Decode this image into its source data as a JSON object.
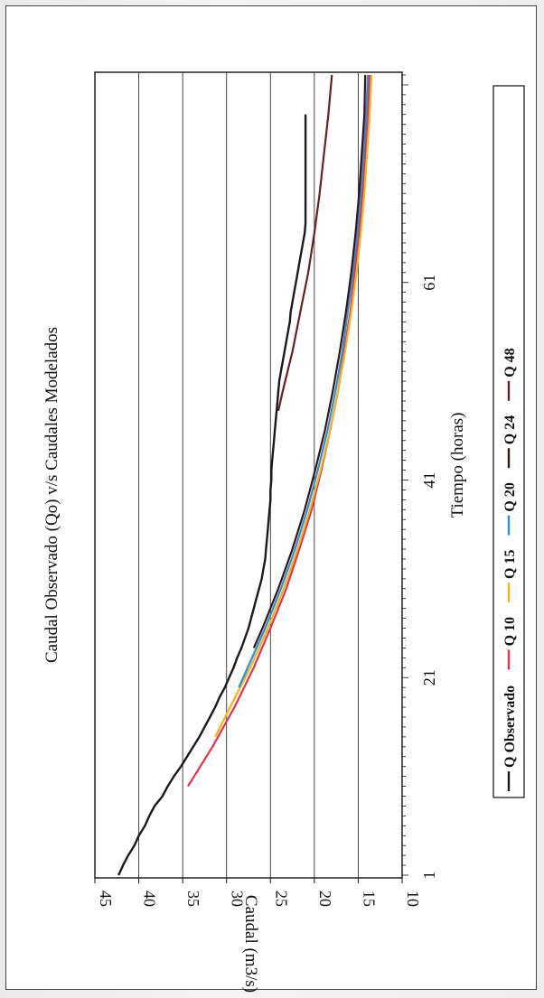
{
  "chart_data": {
    "type": "line",
    "title": "Caudal Observado (Qo) v/s Caudales Modelados",
    "xlabel": "Tiempo (horas)",
    "ylabel": "Caudal (m3/s)",
    "x_ticks": [
      "1",
      "21",
      "41",
      "61"
    ],
    "y_ticks": [
      "10",
      "15",
      "20",
      "25",
      "30",
      "35",
      "40",
      "45"
    ],
    "xlim": [
      1,
      82
    ],
    "ylim": [
      10,
      45
    ],
    "grid": "horizontal",
    "legend_position": "bottom",
    "series": [
      {
        "name": "Q Observado",
        "color": "#1a1a1a",
        "x": [
          1,
          2,
          3,
          4,
          5,
          6,
          7,
          8,
          9,
          10,
          11,
          12,
          13,
          14,
          15,
          16,
          17,
          18,
          19,
          20,
          21,
          22,
          23,
          24,
          25,
          26,
          27,
          28,
          29,
          30,
          31,
          32,
          33,
          34,
          35,
          36,
          37,
          38,
          39,
          40,
          41,
          42,
          43,
          44,
          45,
          46,
          47,
          48,
          49,
          50,
          51,
          52,
          53,
          54,
          55,
          56,
          57,
          58,
          59,
          60,
          61,
          62,
          63,
          64,
          65,
          66,
          67,
          68,
          69,
          70,
          71,
          72,
          73,
          74,
          75,
          76,
          77,
          78
        ],
        "y": [
          42.3,
          41.8,
          41.2,
          40.5,
          40.0,
          39.3,
          38.8,
          38.2,
          37.3,
          36.7,
          36.0,
          35.2,
          34.5,
          33.8,
          33.1,
          32.5,
          31.9,
          31.3,
          30.8,
          30.2,
          29.7,
          29.2,
          28.8,
          28.3,
          27.9,
          27.5,
          27.2,
          26.9,
          26.6,
          26.3,
          26.0,
          25.8,
          25.6,
          25.5,
          25.4,
          25.3,
          25.2,
          25.1,
          25.0,
          25.0,
          24.9,
          24.9,
          24.8,
          24.7,
          24.6,
          24.5,
          24.4,
          24.3,
          24.2,
          24.1,
          24.0,
          23.8,
          23.6,
          23.4,
          23.2,
          23.0,
          22.8,
          22.7,
          22.5,
          22.3,
          22.1,
          21.9,
          21.7,
          21.5,
          21.3,
          21.1,
          21.0,
          21.0,
          21.0,
          21.0,
          21.0,
          21.0,
          21.0,
          21.0,
          21.0,
          21.0,
          21.0,
          21.0
        ]
      },
      {
        "name": "Q 10",
        "color": "#e8304a",
        "x": [
          10,
          14,
          18,
          22,
          26,
          30,
          34,
          38,
          42,
          46,
          50,
          54,
          58,
          62,
          66,
          70,
          74,
          78,
          82
        ],
        "y": [
          34.4,
          31.6,
          29.1,
          26.9,
          25.0,
          23.2,
          21.7,
          20.3,
          19.2,
          18.2,
          17.3,
          16.6,
          15.9,
          15.4,
          14.9,
          14.5,
          14.2,
          13.9,
          13.7
        ]
      },
      {
        "name": "Q 15",
        "color": "#f4b41a",
        "x": [
          15,
          18,
          22,
          26,
          30,
          34,
          38,
          42,
          46,
          50,
          54,
          58,
          62,
          66,
          70,
          74,
          78,
          82
        ],
        "y": [
          31.3,
          29.6,
          27.3,
          25.3,
          23.5,
          21.9,
          20.5,
          19.3,
          18.2,
          17.3,
          16.5,
          15.8,
          15.2,
          14.7,
          14.3,
          14.0,
          13.7,
          13.5
        ]
      },
      {
        "name": "Q 20",
        "color": "#2a8fd6",
        "x": [
          20,
          22,
          26,
          30,
          34,
          38,
          42,
          46,
          50,
          54,
          58,
          62,
          66,
          70,
          74,
          78,
          82
        ],
        "y": [
          28.6,
          27.6,
          25.6,
          23.8,
          22.2,
          20.8,
          19.6,
          18.5,
          17.6,
          16.8,
          16.2,
          15.6,
          15.1,
          14.7,
          14.4,
          14.1,
          13.9
        ]
      },
      {
        "name": "Q 24",
        "color": "#3a1414",
        "x": [
          24,
          26,
          30,
          34,
          38,
          42,
          46,
          50,
          54,
          58,
          62,
          66,
          70,
          74,
          78,
          82
        ],
        "y": [
          26.9,
          25.9,
          24.1,
          22.5,
          21.1,
          19.9,
          18.8,
          17.9,
          17.1,
          16.4,
          15.8,
          15.3,
          14.9,
          14.6,
          14.3,
          14.2
        ]
      },
      {
        "name": "Q 48",
        "color": "#6b1e24",
        "x": [
          48,
          50,
          54,
          58,
          62,
          66,
          70,
          74,
          78,
          82
        ],
        "y": [
          24.1,
          23.6,
          22.5,
          21.6,
          20.7,
          20.0,
          19.4,
          18.9,
          18.4,
          18.0
        ]
      }
    ]
  }
}
